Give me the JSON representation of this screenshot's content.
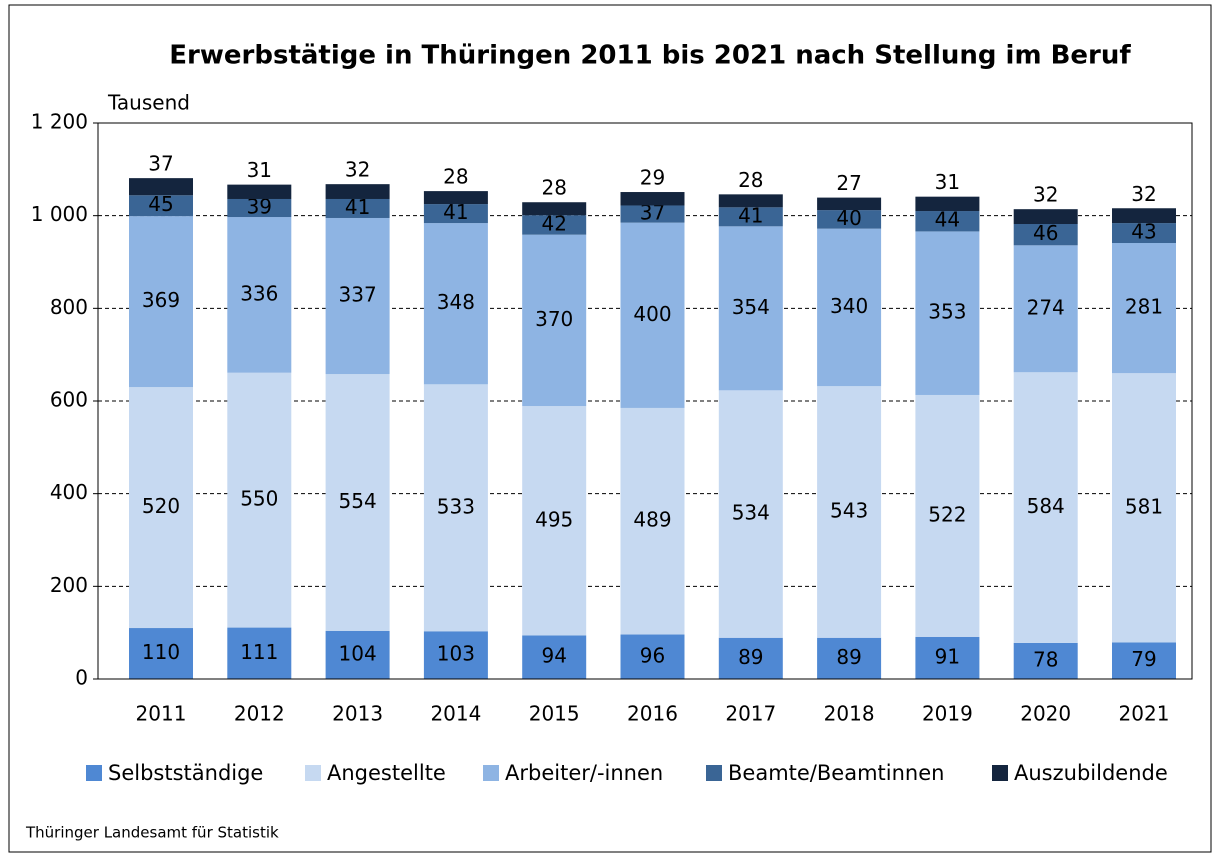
{
  "chart_data": {
    "type": "stacked_bar",
    "title": "Erwerbstätige in Thüringen 2011 bis 2021 nach Stellung im Beruf",
    "y_label": "Tausend",
    "source": "Thüringer Landesamt für Statistik",
    "categories": [
      "2011",
      "2012",
      "2013",
      "2014",
      "2015",
      "2016",
      "2017",
      "2018",
      "2019",
      "2020",
      "2021"
    ],
    "series": [
      {
        "name": "Selbstständige",
        "color": "#4f88d3",
        "values": [
          110,
          111,
          104,
          103,
          94,
          96,
          89,
          89,
          91,
          78,
          79
        ]
      },
      {
        "name": "Angestellte",
        "color": "#c6d9f1",
        "values": [
          520,
          550,
          554,
          533,
          495,
          489,
          534,
          543,
          522,
          584,
          581
        ]
      },
      {
        "name": "Arbeiter/-innen",
        "color": "#8eb4e3",
        "values": [
          369,
          336,
          337,
          348,
          370,
          400,
          354,
          340,
          353,
          274,
          281
        ]
      },
      {
        "name": "Beamte/Beamtinnen",
        "color": "#3a6595",
        "values": [
          45,
          39,
          41,
          41,
          42,
          37,
          41,
          40,
          44,
          46,
          43
        ]
      },
      {
        "name": "Auszubildende",
        "color": "#14253e",
        "values": [
          37,
          31,
          32,
          28,
          28,
          29,
          28,
          27,
          31,
          32,
          32
        ]
      }
    ],
    "ylim": [
      0,
      1200
    ],
    "yticks": [
      0,
      200,
      400,
      600,
      800,
      {
        "value": 1000,
        "label": "1 000"
      },
      {
        "value": 1200,
        "label": "1 200"
      }
    ],
    "grid": true,
    "legend": "bottom"
  }
}
